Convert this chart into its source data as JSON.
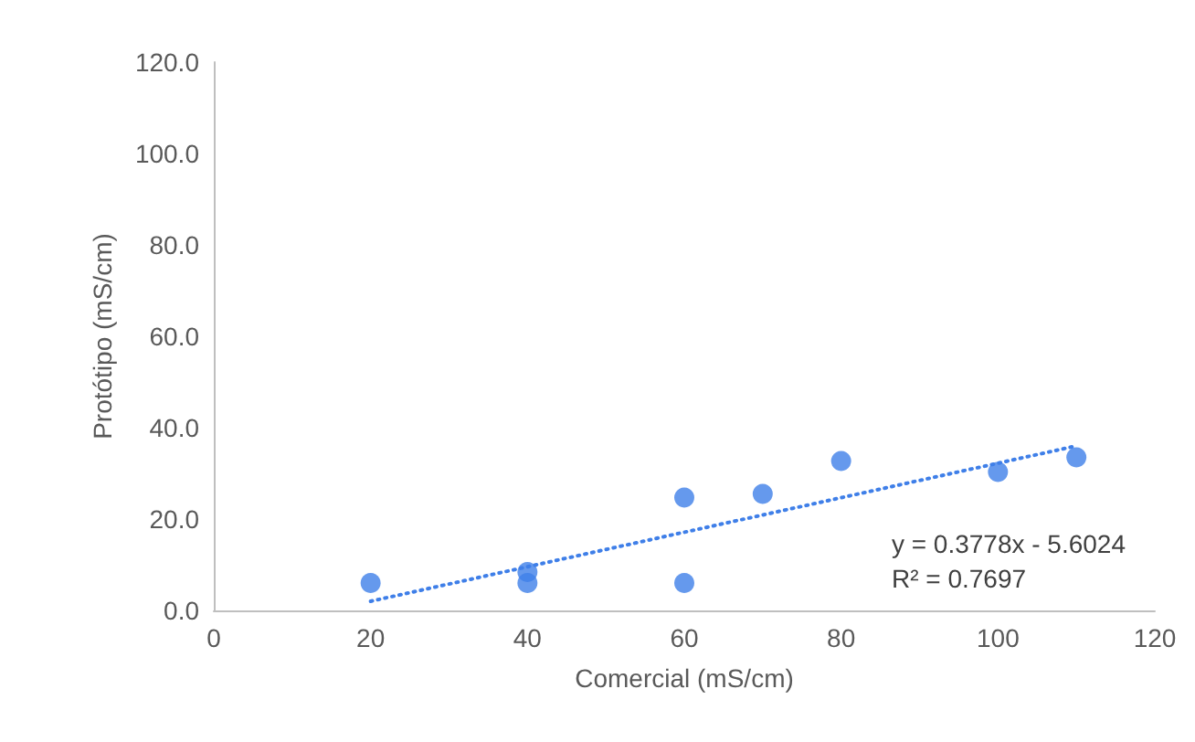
{
  "chart_data": {
    "type": "scatter",
    "xlabel": "Comercial (mS/cm)",
    "ylabel": "Protótipo (mS/cm)",
    "xlim": [
      0,
      120
    ],
    "xticks": [
      0,
      20,
      40,
      60,
      80,
      100,
      120
    ],
    "ylim": [
      0,
      120
    ],
    "yticks": [
      {
        "value": 0,
        "label": "0.0"
      },
      {
        "value": 20,
        "label": "20.0"
      },
      {
        "value": 40,
        "label": "40.0"
      },
      {
        "value": 60,
        "label": "60.0"
      },
      {
        "value": 80,
        "label": "80.0"
      },
      {
        "value": 100,
        "label": "100.0"
      },
      {
        "value": 120,
        "label": "120.0"
      }
    ],
    "grid": false,
    "marker": "circle",
    "series": [
      {
        "color": "#3f7fe8",
        "x": [
          20,
          40,
          40,
          60,
          60,
          70,
          80,
          100,
          110
        ],
        "values": [
          6.0,
          8.4,
          6.0,
          24.7,
          6.0,
          25.5,
          32.7,
          30.3,
          33.5
        ]
      },
      {
        "type": "line",
        "color": "#3f7fe8",
        "line_style": "dotted",
        "marker": "none",
        "x": [
          20,
          110
        ],
        "values": [
          2.0,
          36.0
        ]
      }
    ],
    "annotations": [
      "y = 0.3778x - 5.6024\nR² = 0.7697"
    ]
  }
}
